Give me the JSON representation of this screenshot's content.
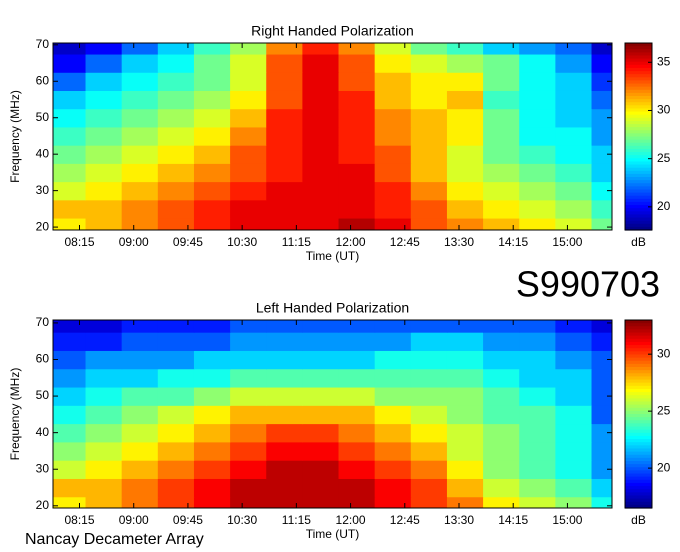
{
  "chart_data": [
    {
      "type": "heatmap",
      "title": "Right Handed Polarization",
      "x_label": "Time (UT)",
      "y_label": "Frequency (MHz)",
      "colorbar_label": "dB",
      "colormap": "jet",
      "x": [
        485,
        515,
        545,
        575,
        605,
        635,
        665,
        695,
        725,
        755,
        785,
        815,
        845,
        875,
        905,
        935
      ],
      "y": [
        20,
        25,
        30,
        35,
        40,
        45,
        50,
        55,
        60,
        65,
        70
      ],
      "z": [
        [
          30,
          31,
          32,
          33,
          34,
          35,
          35,
          35,
          36,
          35,
          33,
          32,
          31,
          30,
          29,
          27
        ],
        [
          31,
          31,
          32,
          33,
          34,
          35,
          35,
          35,
          35,
          34,
          33,
          31,
          30,
          29,
          28,
          26
        ],
        [
          29,
          30,
          31,
          32,
          33,
          34,
          35,
          35,
          35,
          34,
          32,
          30,
          29,
          28,
          27,
          25
        ],
        [
          28,
          29,
          30,
          31,
          32,
          33,
          34,
          35,
          35,
          33,
          31,
          29,
          28,
          27,
          26,
          24
        ],
        [
          27,
          28,
          29,
          30,
          31,
          33,
          34,
          35,
          34,
          33,
          31,
          29,
          27,
          26,
          25,
          24
        ],
        [
          26,
          27,
          28,
          29,
          30,
          32,
          34,
          35,
          34,
          32,
          31,
          30,
          27,
          25,
          25,
          23
        ],
        [
          25,
          26,
          27,
          28,
          29,
          31,
          34,
          35,
          34,
          32,
          31,
          30,
          27,
          25,
          24,
          23
        ],
        [
          24,
          25,
          26,
          27,
          28,
          30,
          33,
          35,
          34,
          31,
          30,
          31,
          26,
          25,
          24,
          22
        ],
        [
          22,
          24,
          25,
          26,
          27,
          29,
          33,
          35,
          33,
          31,
          30,
          30,
          27,
          25,
          24,
          21
        ],
        [
          20,
          22,
          24,
          25,
          27,
          29,
          33,
          35,
          33,
          30,
          29,
          28,
          27,
          25,
          23,
          20
        ],
        [
          19,
          20,
          22,
          24,
          26,
          28,
          32,
          34,
          32,
          29,
          27,
          26,
          24,
          23,
          22,
          19
        ]
      ],
      "xlim": [
        473,
        937
      ],
      "ylim": [
        19.2,
        70.5
      ],
      "zlim": [
        17.6,
        37
      ],
      "xticks": [
        {
          "value": 495,
          "label": "08:15"
        },
        {
          "value": 540,
          "label": "09:00"
        },
        {
          "value": 585,
          "label": "09:45"
        },
        {
          "value": 630,
          "label": "10:30"
        },
        {
          "value": 675,
          "label": "11:15"
        },
        {
          "value": 720,
          "label": "12:00"
        },
        {
          "value": 765,
          "label": "12:45"
        },
        {
          "value": 810,
          "label": "13:30"
        },
        {
          "value": 855,
          "label": "14:15"
        },
        {
          "value": 900,
          "label": "15:00"
        }
      ],
      "yticks": [
        20,
        30,
        40,
        50,
        60,
        70
      ],
      "zticks": [
        20,
        25,
        30,
        35
      ]
    },
    {
      "type": "heatmap",
      "title": "Left Handed Polarization",
      "x_label": "Time (UT)",
      "y_label": "Frequency (MHz)",
      "colorbar_label": "dB",
      "colormap": "jet",
      "x": [
        485,
        515,
        545,
        575,
        605,
        635,
        665,
        695,
        725,
        755,
        785,
        815,
        845,
        875,
        905,
        935
      ],
      "y": [
        20,
        25,
        30,
        35,
        40,
        45,
        50,
        55,
        60,
        65,
        70
      ],
      "z": [
        [
          27,
          28,
          29,
          30,
          31,
          32,
          32,
          32,
          32,
          31,
          30,
          29,
          27,
          26,
          25,
          23
        ],
        [
          28,
          28,
          29,
          30,
          31,
          32,
          32,
          32,
          32,
          31,
          30,
          28,
          26,
          25,
          24,
          22
        ],
        [
          26,
          27,
          28,
          29,
          30,
          31,
          32,
          32,
          31,
          30,
          29,
          27,
          25,
          24,
          23,
          21
        ],
        [
          25,
          26,
          27,
          28,
          29,
          30,
          31,
          31,
          30,
          29,
          28,
          26,
          25,
          24,
          23,
          21
        ],
        [
          24,
          25,
          26,
          27,
          28,
          29,
          30,
          30,
          29,
          28,
          27,
          26,
          25,
          24,
          23,
          21
        ],
        [
          23,
          24,
          25,
          26,
          27,
          28,
          28,
          28,
          28,
          27,
          26,
          25,
          24,
          24,
          23,
          20
        ],
        [
          22,
          23,
          24,
          24,
          25,
          26,
          26,
          26,
          26,
          25,
          25,
          25,
          24,
          23,
          22,
          20
        ],
        [
          21,
          22,
          22,
          23,
          23,
          24,
          24,
          24,
          24,
          24,
          24,
          24,
          23,
          22,
          22,
          20
        ],
        [
          20,
          21,
          21,
          21,
          22,
          22,
          22,
          22,
          22,
          23,
          23,
          23,
          22,
          22,
          21,
          20
        ],
        [
          19,
          19,
          20,
          20,
          20,
          21,
          21,
          21,
          21,
          21,
          22,
          22,
          21,
          21,
          20,
          19
        ],
        [
          18,
          18,
          19,
          19,
          19,
          20,
          20,
          20,
          20,
          20,
          20,
          20,
          20,
          20,
          19,
          18
        ]
      ],
      "xlim": [
        473,
        937
      ],
      "ylim": [
        19.4,
        70.8
      ],
      "zlim": [
        16.5,
        33
      ],
      "xticks": [
        {
          "value": 495,
          "label": "08:15"
        },
        {
          "value": 540,
          "label": "09:00"
        },
        {
          "value": 585,
          "label": "09:45"
        },
        {
          "value": 630,
          "label": "10:30"
        },
        {
          "value": 675,
          "label": "11:15"
        },
        {
          "value": 720,
          "label": "12:00"
        },
        {
          "value": 765,
          "label": "12:45"
        },
        {
          "value": 810,
          "label": "13:30"
        },
        {
          "value": 855,
          "label": "14:15"
        },
        {
          "value": 900,
          "label": "15:00"
        }
      ],
      "yticks": [
        20,
        30,
        40,
        50,
        60,
        70
      ],
      "zticks": [
        20,
        25,
        30
      ]
    }
  ],
  "observation_id": "S990703",
  "footer": "Nancay Decameter Array"
}
